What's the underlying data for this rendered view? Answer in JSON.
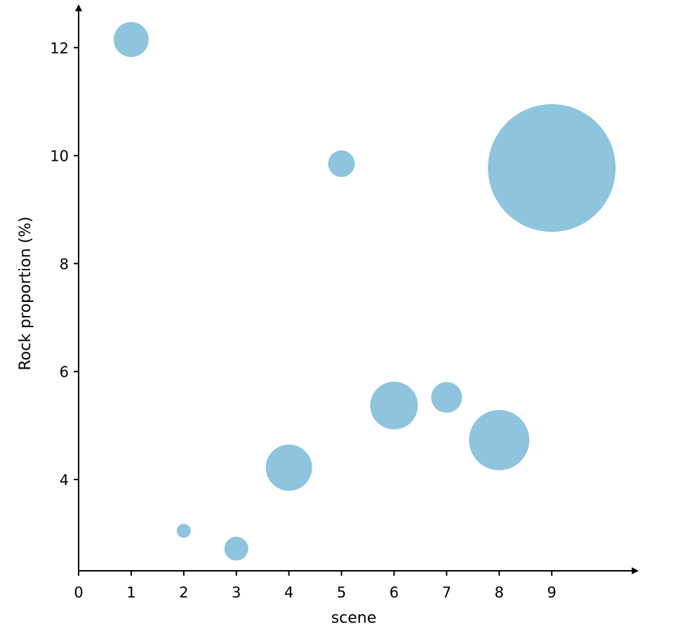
{
  "chart_data": {
    "type": "scatter",
    "title": "",
    "xlabel": "scene",
    "ylabel": "Rock proportion (%)",
    "xlim": [
      0,
      9.7
    ],
    "ylim": [
      2.3,
      12.8
    ],
    "xticks": [
      0,
      1,
      2,
      3,
      4,
      5,
      6,
      7,
      8,
      9
    ],
    "yticks": [
      4,
      6,
      8,
      10,
      12
    ],
    "grid": false,
    "legend": "none",
    "color": "#8fc4de",
    "points": [
      {
        "x": 1,
        "y": 12.15,
        "size": 25
      },
      {
        "x": 2,
        "y": 3.05,
        "size": 10
      },
      {
        "x": 3,
        "y": 2.72,
        "size": 17
      },
      {
        "x": 4,
        "y": 4.22,
        "size": 33
      },
      {
        "x": 5,
        "y": 9.85,
        "size": 19
      },
      {
        "x": 6,
        "y": 5.37,
        "size": 34
      },
      {
        "x": 7,
        "y": 5.52,
        "size": 22
      },
      {
        "x": 8,
        "y": 4.73,
        "size": 43
      },
      {
        "x": 9,
        "y": 9.77,
        "size": 91
      }
    ]
  }
}
